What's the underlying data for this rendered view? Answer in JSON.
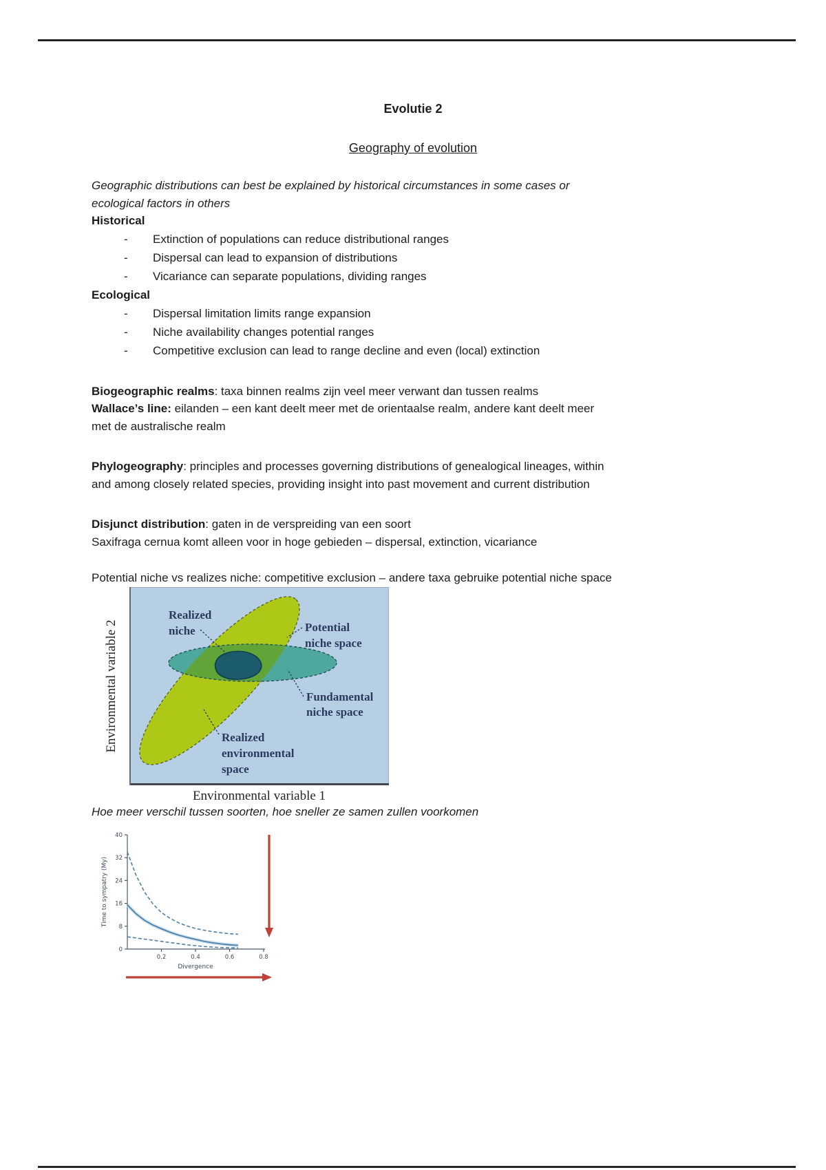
{
  "page": {
    "title": "Evolutie 2",
    "subtitle": "Geography of evolution"
  },
  "ui": {
    "bullet_char": "-"
  },
  "intro": {
    "lines": [
      "Geographic distributions can best be explained by historical circumstances in some cases or",
      "ecological factors in others"
    ]
  },
  "sections": [
    {
      "heading": "Historical",
      "bullets": [
        "Extinction of populations can reduce distributional ranges",
        "Dispersal can lead to expansion of distributions",
        "Vicariance can separate populations, dividing ranges"
      ]
    },
    {
      "heading": "Ecological",
      "bullets": [
        "Dispersal limitation limits range expansion",
        "Niche availability changes potential ranges",
        "Competitive exclusion can lead to range decline and even (local) extinction"
      ]
    }
  ],
  "definitions": {
    "biogeographic": {
      "term": "Biogeographic realms",
      "rest": ": taxa binnen realms zijn veel meer verwant dan tussen realms"
    },
    "wallace": {
      "term": "Wallace’s line:",
      "rest": " eilanden – een kant deelt meer met de orientaalse realm, andere kant deelt meer",
      "line2": "met de australische realm"
    },
    "phylogeography": {
      "term": "Phylogeography",
      "rest": ": principles and processes governing distributions of genealogical lineages, within",
      "line2": "and among closely related species, providing insight into past movement and current distribution"
    },
    "disjunct": {
      "term": "Disjunct distribution",
      "rest": ": gaten in de verspreiding van een soort",
      "line2": "Saxifraga cernua komt alleen voor in hoge gebieden – dispersal, extinction, vicariance"
    }
  },
  "niche_intro": "Potential niche vs realizes niche: competitive exclusion – andere taxa gebruike potential niche space",
  "niche_diagram": {
    "xlabel": "Environmental variable 1",
    "ylabel": "Environmental variable 2",
    "labels": {
      "realized_niche": [
        "Realized",
        "niche"
      ],
      "potential": [
        "Potential",
        "niche space"
      ],
      "fundamental": [
        "Fundamental",
        "niche space"
      ],
      "realized_env": [
        "Realized",
        "environmental",
        "space"
      ]
    },
    "colors": {
      "background": "#b7cfe5",
      "realized_env_space": "#aec818",
      "fundamental_niche": "#4fa89e",
      "overlap": "#61a438",
      "realized_niche": "#1c5b6b",
      "label_text": "#2a3a5e"
    }
  },
  "note": "Hoe meer verschil tussen soorten, hoe sneller ze samen zullen voorkomen",
  "chart_data": {
    "type": "line",
    "title": "",
    "xlabel": "Divergence",
    "ylabel": "Time to sympatry (My)",
    "xlim": [
      0,
      0.8
    ],
    "ylim": [
      0,
      40
    ],
    "xticks": [
      "0.2",
      "0.4",
      "0.6",
      "0.8"
    ],
    "yticks": [
      "0",
      "8",
      "16",
      "24",
      "32",
      "40"
    ],
    "grid": false,
    "x": [
      0,
      0.05,
      0.1,
      0.15,
      0.2,
      0.25,
      0.3,
      0.35,
      0.4,
      0.45,
      0.5,
      0.55,
      0.6,
      0.65
    ],
    "series": [
      {
        "name": "upper dashed bound",
        "dashed": true,
        "y": [
          34,
          26,
          20,
          15.8,
          12.8,
          10.8,
          9.2,
          8.1,
          7.2,
          6.6,
          6.1,
          5.7,
          5.4,
          5.2
        ]
      },
      {
        "name": "mean time to sympatry",
        "dashed": false,
        "y": [
          15.5,
          12.4,
          10.1,
          8.4,
          7.1,
          5.9,
          4.9,
          4.1,
          3.4,
          2.7,
          2.2,
          1.8,
          1.5,
          1.3
        ]
      },
      {
        "name": "lower dashed bound",
        "dashed": true,
        "y": [
          4.3,
          3.9,
          3.5,
          3.1,
          2.7,
          2.3,
          1.9,
          1.5,
          1.2,
          0.9,
          0.7,
          0.55,
          0.45,
          0.4
        ]
      }
    ],
    "colors": {
      "line": "#4f7fa5",
      "band": "#b9d8ec",
      "arrow": "#bf4136",
      "axis_text": "#3c4c61"
    }
  }
}
